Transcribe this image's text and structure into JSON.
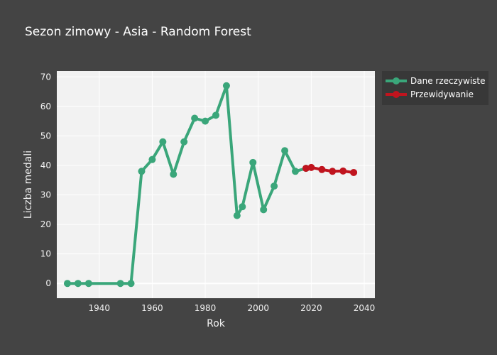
{
  "chart_data": {
    "type": "line",
    "title": "Sezon zimowy - Asia - Random Forest",
    "xlabel": "Rok",
    "ylabel": "Liczba medali",
    "xlim": [
      1924,
      2044
    ],
    "ylim": [
      -5,
      72
    ],
    "x_ticks": [
      1940,
      1960,
      1980,
      2000,
      2020,
      2040
    ],
    "y_ticks": [
      0,
      10,
      20,
      30,
      40,
      50,
      60,
      70
    ],
    "grid": true,
    "legend_position": "top-right outside",
    "series": [
      {
        "name": "Dane rzeczywiste",
        "color": "#3aa67a",
        "x": [
          1928,
          1932,
          1936,
          1948,
          1952,
          1956,
          1960,
          1964,
          1968,
          1972,
          1976,
          1980,
          1984,
          1988,
          1992,
          1994,
          1998,
          2002,
          2006,
          2010,
          2014,
          2018
        ],
        "y": [
          0,
          0,
          0,
          0,
          0,
          38,
          42,
          48,
          37,
          48,
          56,
          55,
          57,
          67,
          23,
          26,
          41,
          25,
          33,
          45,
          38,
          39
        ]
      },
      {
        "name": "Przewidywanie",
        "color": "#c0141e",
        "x": [
          2018,
          2020,
          2024,
          2028,
          2032,
          2036
        ],
        "y": [
          39,
          39.3,
          38.6,
          38.0,
          38.1,
          37.6
        ]
      }
    ]
  }
}
